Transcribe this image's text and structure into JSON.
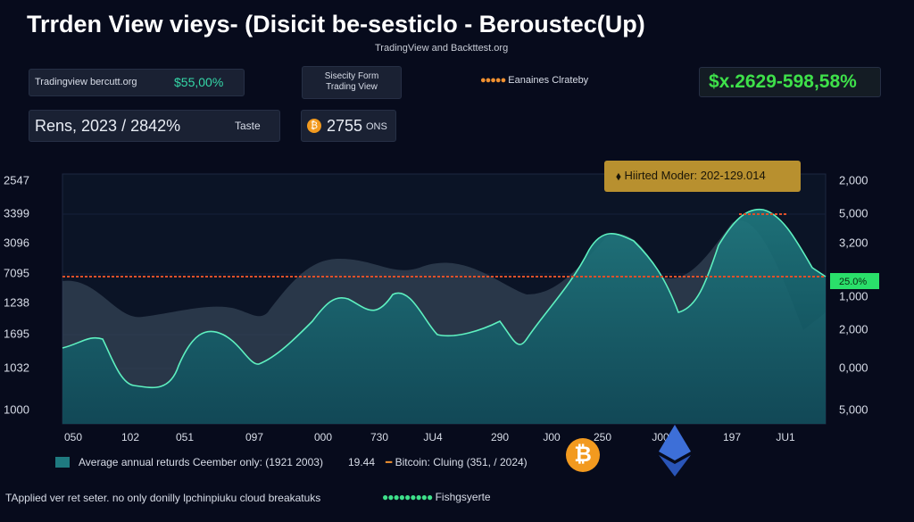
{
  "header": {
    "title": "Trrden View vieys- (Disicit be-sesticlo - Beroustec(Up)",
    "subtitle": "TradingView and Backttest.org"
  },
  "info_bar": {
    "site": "Tradingview bercutt.org",
    "price": "$55,00%",
    "source": [
      "Sisecity Form",
      "Trading View"
    ],
    "legend": "Eanaines Clrateby",
    "headline": "$x.2629-598,58%"
  },
  "stats": {
    "range": "Rens, 2023 / 2842%",
    "taste": "Taste",
    "coin": "2755",
    "coin_unit": "ONS"
  },
  "chart": {
    "tooltip": "Hiirted Moder: 202-129.014",
    "marker": "25.0%",
    "left_axis": [
      "2547",
      "3399",
      "3096",
      "7095",
      "1238",
      "1695",
      "1032",
      "1000"
    ],
    "right_axis": [
      "2,000",
      "5,000",
      "3,200",
      "1,000",
      "2,000",
      "0,000",
      "5,000"
    ],
    "x_axis": [
      "050",
      "102",
      "051",
      "097",
      "000",
      "730",
      "JU4",
      "290",
      "J00",
      "250",
      "J00",
      "197",
      "JU1"
    ]
  },
  "legend": {
    "series1": "Average annual returds Ceember only: (1921 2003)",
    "series1_value": "19.44",
    "series2": "Bitcoin: Cluing (351, / 2024)"
  },
  "footer": {
    "note": "TApplied ver ret seter. no only donilly lpchinpiuku cloud breakatuks",
    "status": "Fishgsyerte"
  }
}
